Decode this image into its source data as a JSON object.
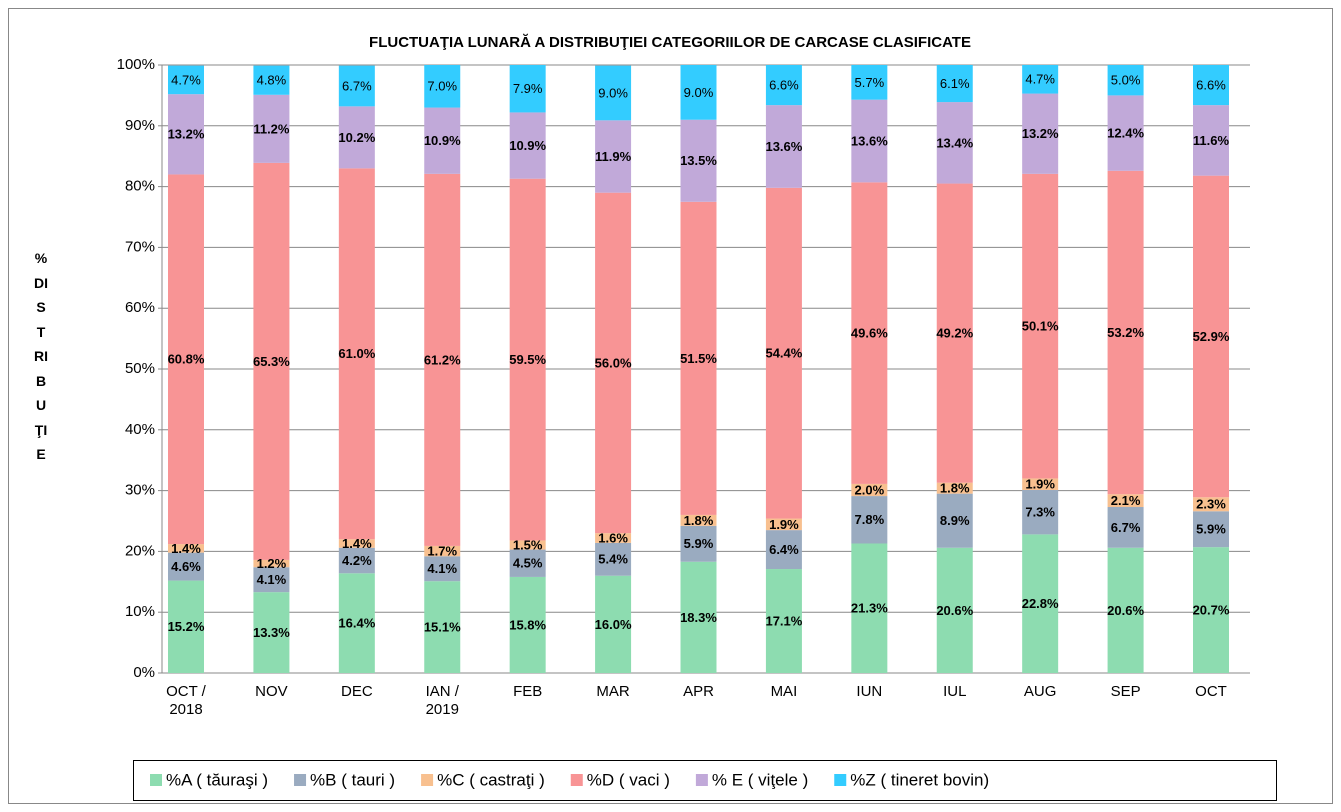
{
  "chart_data": {
    "type": "stacked_bar",
    "title": "FLUCTUAŢIA LUNARĂ  A DISTRIBUŢIEI  CATEGORIILOR DE CARCASE CLASIFICATE",
    "y_label": "% DISTRIBUŢIE",
    "categories": [
      "OCT / 2018",
      "NOV",
      "DEC",
      "IAN / 2019",
      "FEB",
      "MAR",
      "APR",
      "MAI",
      "IUN",
      "IUL",
      "AUG",
      "SEP",
      "OCT"
    ],
    "ylim": [
      0,
      100
    ],
    "yticks": [
      {
        "value": 0,
        "label": "0%"
      },
      {
        "value": 10,
        "label": "10%"
      },
      {
        "value": 20,
        "label": "20%"
      },
      {
        "value": 30,
        "label": "30%"
      },
      {
        "value": 40,
        "label": "40%"
      },
      {
        "value": 50,
        "label": "50%"
      },
      {
        "value": 60,
        "label": "60%"
      },
      {
        "value": 70,
        "label": "70%"
      },
      {
        "value": 80,
        "label": "80%"
      },
      {
        "value": 90,
        "label": "90%"
      },
      {
        "value": 100,
        "label": "100%"
      }
    ],
    "grid": true,
    "legend": "bottom",
    "series": [
      {
        "name": "%A ( tăuraşi )",
        "color": "#8ddcb0",
        "values": [
          15.2,
          13.3,
          16.4,
          15.1,
          15.8,
          16.0,
          18.3,
          17.1,
          21.3,
          20.6,
          22.8,
          20.6,
          20.7
        ],
        "value_labels": [
          "15.2%",
          "13.3%",
          "16.4%",
          "15.1%",
          "15.8%",
          "16.0%",
          "18.3%",
          "17.1%",
          "21.3%",
          "20.6%",
          "22.8%",
          "20.6%",
          "20.7%"
        ]
      },
      {
        "name": "%B ( tauri )",
        "color": "#9aabc0",
        "values": [
          4.6,
          4.1,
          4.2,
          4.1,
          4.5,
          5.4,
          5.9,
          6.4,
          7.8,
          8.9,
          7.3,
          6.7,
          5.9
        ],
        "value_labels": [
          "4.6%",
          "4.1%",
          "4.2%",
          "4.1%",
          "4.5%",
          "5.4%",
          "5.9%",
          "6.4%",
          "7.8%",
          "8.9%",
          "7.3%",
          "6.7%",
          "5.9%"
        ]
      },
      {
        "name": "%C ( castraţi )",
        "color": "#f8c08f",
        "values": [
          1.4,
          1.2,
          1.4,
          1.7,
          1.5,
          1.6,
          1.8,
          1.9,
          2.0,
          1.8,
          1.9,
          2.1,
          2.3
        ],
        "value_labels": [
          "1.4%",
          "1.2%",
          "1.4%",
          "1.7%",
          "1.5%",
          "1.6%",
          "1.8%",
          "1.9%",
          "2.0%",
          "1.8%",
          "1.9%",
          "2.1%",
          "2.3%"
        ]
      },
      {
        "name": "%D ( vaci )",
        "color": "#f89495",
        "values": [
          60.8,
          65.3,
          61.0,
          61.2,
          59.5,
          56.0,
          51.5,
          54.4,
          49.6,
          49.2,
          50.1,
          53.2,
          52.9
        ],
        "value_labels": [
          "60.8%",
          "65.3%",
          "61.0%",
          "61.2%",
          "59.5%",
          "56.0%",
          "51.5%",
          "54.4%",
          "49.6%",
          "49.2%",
          "50.1%",
          "53.2%",
          "52.9%"
        ]
      },
      {
        "name": "% E ( viţele )",
        "color": "#c1a9d9",
        "values": [
          13.2,
          11.2,
          10.2,
          10.9,
          10.9,
          11.9,
          13.5,
          13.6,
          13.6,
          13.4,
          13.2,
          12.4,
          11.6
        ],
        "value_labels": [
          "13.2%",
          "11.2%",
          "10.2%",
          "10.9%",
          "10.9%",
          "11.9%",
          "13.5%",
          "13.6%",
          "13.6%",
          "13.4%",
          "13.2%",
          "12.4%",
          "11.6%"
        ]
      },
      {
        "name": "%Z ( tineret bovin)",
        "color": "#33ccff",
        "values": [
          4.7,
          4.8,
          6.7,
          7.0,
          7.9,
          9.0,
          9.0,
          6.6,
          5.7,
          6.1,
          4.7,
          5.0,
          6.6
        ],
        "value_labels": [
          "4.7%",
          "4.8%",
          "6.7%",
          "7.0%",
          "7.9%",
          "9.0%",
          "9.0%",
          "6.6%",
          "5.7%",
          "6.1%",
          "4.7%",
          "5.0%",
          "6.6%"
        ]
      }
    ]
  }
}
